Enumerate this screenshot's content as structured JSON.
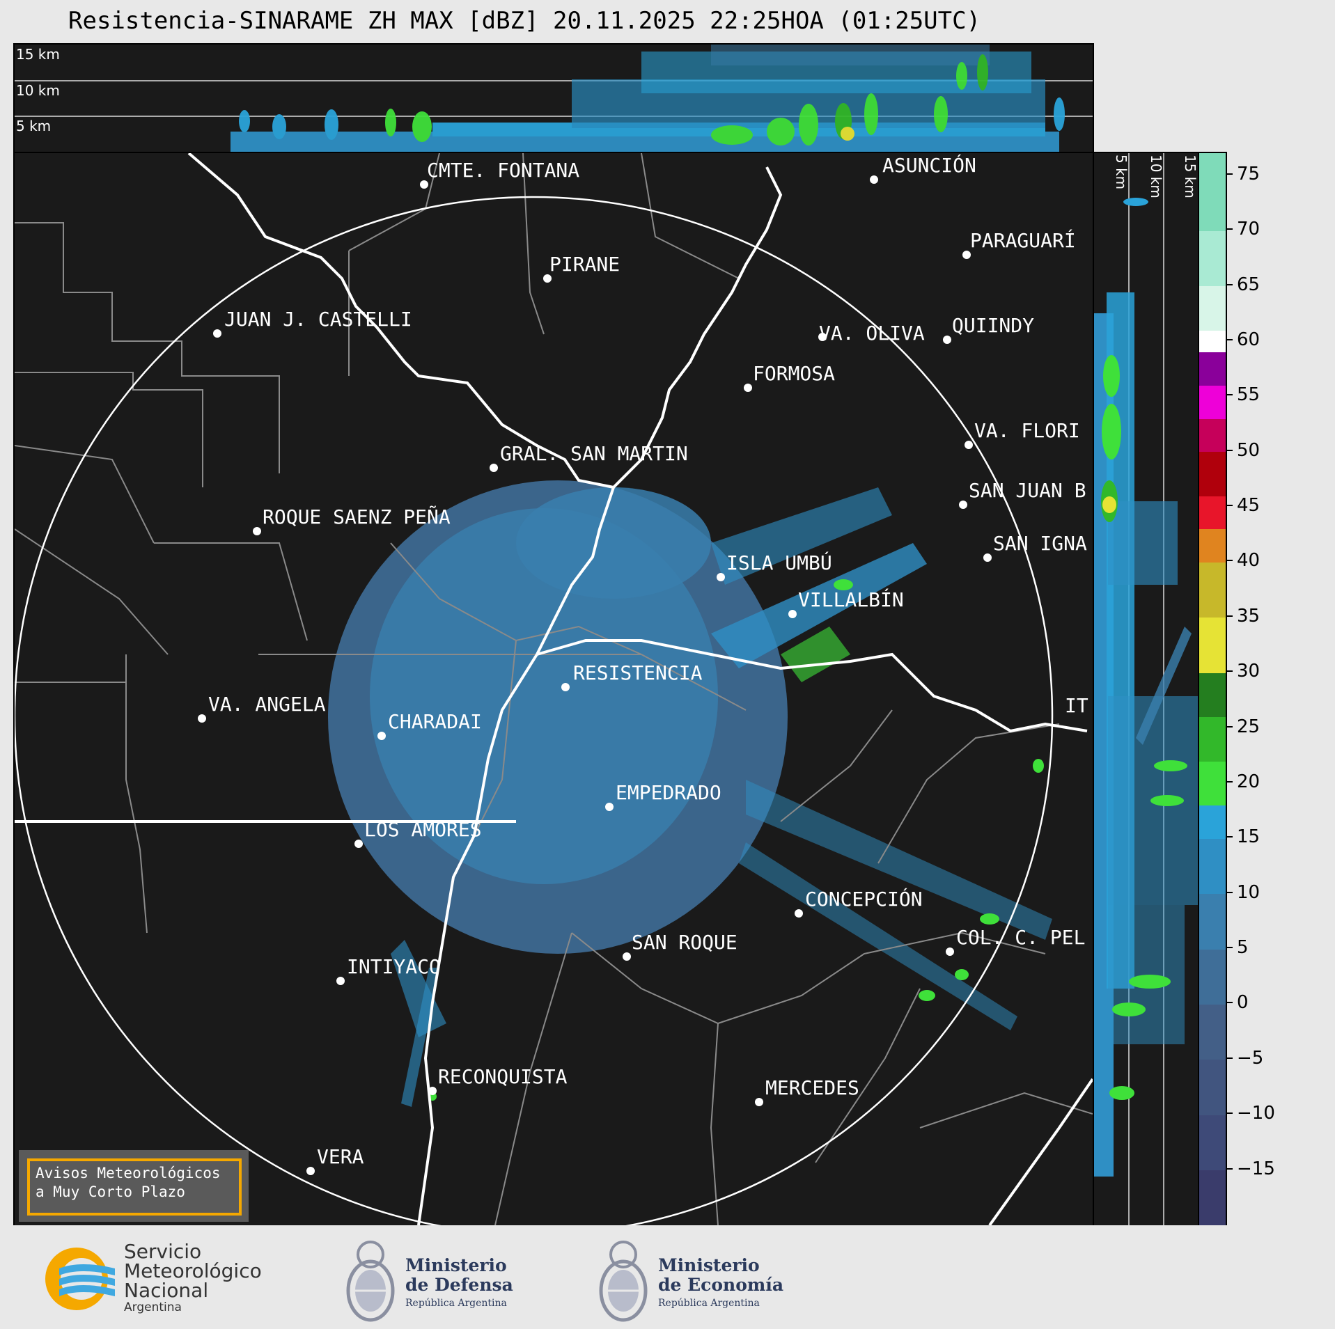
{
  "title": "Resistencia-SINARAME ZH MAX [dBZ] 20.11.2025 22:25HOA (01:25UTC)",
  "top_panel": {
    "altitude_labels": [
      "15 km",
      "10 km",
      "5 km"
    ]
  },
  "side_panel": {
    "altitude_labels": [
      "5 km",
      "10 km",
      "15 km"
    ]
  },
  "colorbar": {
    "unit": "dBZ",
    "ticks": [
      "75",
      "70",
      "65",
      "60",
      "55",
      "50",
      "45",
      "40",
      "35",
      "30",
      "25",
      "20",
      "15",
      "10",
      "5",
      "0",
      "−5",
      "−10",
      "−15"
    ],
    "range": [
      -20,
      77
    ],
    "bands": [
      {
        "from": -20,
        "to": -15,
        "color": "#3a3c6b"
      },
      {
        "from": -15,
        "to": -10,
        "color": "#3e4a78"
      },
      {
        "from": -10,
        "to": -5,
        "color": "#41557f"
      },
      {
        "from": -5,
        "to": 0,
        "color": "#435f87"
      },
      {
        "from": 0,
        "to": 5,
        "color": "#3f6e98"
      },
      {
        "from": 5,
        "to": 10,
        "color": "#3a7fae"
      },
      {
        "from": 10,
        "to": 15,
        "color": "#2f8fc4"
      },
      {
        "from": 15,
        "to": 18,
        "color": "#2aa3d9"
      },
      {
        "from": 18,
        "to": 22,
        "color": "#3fe03a"
      },
      {
        "from": 22,
        "to": 26,
        "color": "#32b82a"
      },
      {
        "from": 26,
        "to": 30,
        "color": "#247e1f"
      },
      {
        "from": 30,
        "to": 35,
        "color": "#e6e335"
      },
      {
        "from": 35,
        "to": 40,
        "color": "#c7b82a"
      },
      {
        "from": 40,
        "to": 43,
        "color": "#e0841f"
      },
      {
        "from": 43,
        "to": 46,
        "color": "#e8152a"
      },
      {
        "from": 46,
        "to": 50,
        "color": "#b0000c"
      },
      {
        "from": 50,
        "to": 53,
        "color": "#c6005a"
      },
      {
        "from": 53,
        "to": 56,
        "color": "#ee00d8"
      },
      {
        "from": 56,
        "to": 59,
        "color": "#8a009a"
      },
      {
        "from": 59,
        "to": 61,
        "color": "#ffffff"
      },
      {
        "from": 61,
        "to": 65,
        "color": "#d8f5e8"
      },
      {
        "from": 65,
        "to": 70,
        "color": "#a9ead3"
      },
      {
        "from": 70,
        "to": 77,
        "color": "#7fdbb9"
      }
    ]
  },
  "cities": [
    {
      "name": "CMTE. FONTANA"
    },
    {
      "name": "ASUNCIÓN"
    },
    {
      "name": "PIRANE"
    },
    {
      "name": "PARAGUARÍ"
    },
    {
      "name": "JUAN J. CASTELLI"
    },
    {
      "name": "VA. OLIVA"
    },
    {
      "name": "QUIINDY"
    },
    {
      "name": "FORMOSA"
    },
    {
      "name": "VA. FLORI"
    },
    {
      "name": "GRAL. SAN MARTIN"
    },
    {
      "name": "SAN JUAN B"
    },
    {
      "name": "ROQUE SAENZ PEÑA"
    },
    {
      "name": "SAN IGNA"
    },
    {
      "name": "ISLA UMBÚ"
    },
    {
      "name": "VILLALBÍN"
    },
    {
      "name": "RESISTENCIA"
    },
    {
      "name": "VA. ANGELA"
    },
    {
      "name": "CHARADAI"
    },
    {
      "name": "IT"
    },
    {
      "name": "EMPEDRADO"
    },
    {
      "name": "LOS AMORES"
    },
    {
      "name": "CONCEPCIÓN"
    },
    {
      "name": "COL. C. PEL"
    },
    {
      "name": "SAN ROQUE"
    },
    {
      "name": "INTIYACO"
    },
    {
      "name": "RECONQUISTA"
    },
    {
      "name": "MERCEDES"
    },
    {
      "name": "VERA"
    }
  ],
  "alert": {
    "line1": "Avisos Meteorológicos",
    "line2": "a Muy Corto Plazo"
  },
  "footer": {
    "smn": {
      "line1": "Servicio",
      "line2": "Meteorológico",
      "line3": "Nacional",
      "line4": "Argentina"
    },
    "defensa": {
      "line1": "Ministerio",
      "line2": "de Defensa",
      "line3": "República Argentina"
    },
    "economia": {
      "line1": "Ministerio",
      "line2": "de Economía",
      "line3": "República Argentina"
    }
  }
}
